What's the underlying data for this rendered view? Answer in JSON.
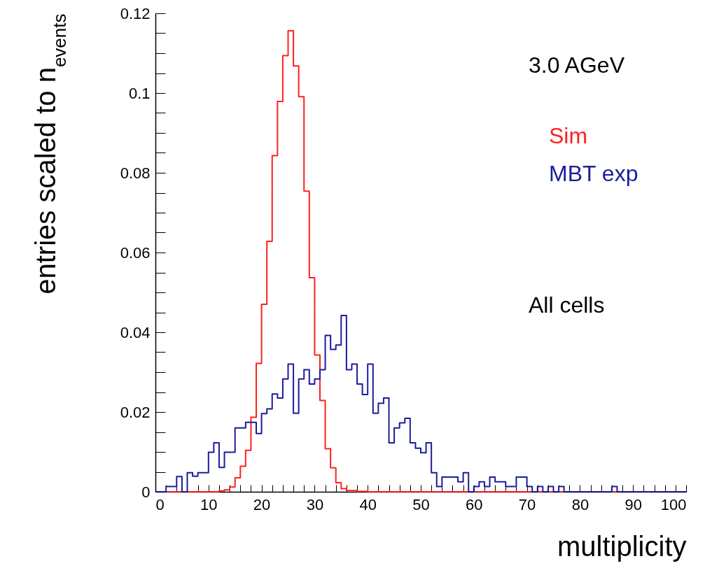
{
  "chart_data": {
    "type": "histogram",
    "xlabel": "multiplicity",
    "ylabel": "entries scaled to n$_{events}$",
    "bins": [
      0,
      1,
      2,
      3,
      4,
      5,
      6,
      7,
      8,
      9,
      10,
      11,
      12,
      13,
      14,
      15,
      16,
      17,
      18,
      19,
      20,
      21,
      22,
      23,
      24,
      25,
      26,
      27,
      28,
      29,
      30,
      31,
      32,
      33,
      34,
      35,
      36,
      37,
      38,
      39,
      40,
      41,
      42,
      43,
      44,
      45,
      46,
      47,
      48,
      49,
      50,
      51,
      52,
      53,
      54,
      55,
      56,
      57,
      58,
      59,
      60,
      61,
      62,
      63,
      64,
      65,
      66,
      67,
      68,
      69,
      70,
      71,
      72,
      73,
      74,
      75,
      76,
      77,
      78,
      79,
      80,
      81,
      82,
      83,
      84,
      85,
      86,
      87,
      88,
      89,
      90,
      91,
      92,
      93,
      94,
      95,
      96,
      97,
      98,
      99,
      100
    ],
    "series": [
      {
        "name": "Sim",
        "color": "#ff2020",
        "values": [
          0,
          0,
          0,
          0,
          0,
          0,
          0,
          0,
          0,
          0,
          0,
          0,
          0.0002,
          0.0005,
          0.0012,
          0.0035,
          0.0064,
          0.0104,
          0.0187,
          0.0322,
          0.047,
          0.0628,
          0.0843,
          0.0979,
          0.1094,
          0.1156,
          0.1068,
          0.0991,
          0.0754,
          0.0537,
          0.0343,
          0.0229,
          0.0108,
          0.006,
          0.0023,
          0.0008,
          0.0003,
          0.0003,
          0.0001,
          0.0001,
          0,
          0,
          0,
          0,
          0,
          0,
          0,
          0,
          0,
          0,
          0,
          0,
          0,
          0,
          0,
          0,
          0,
          0,
          0,
          0,
          0,
          0,
          0,
          0,
          0,
          0,
          0,
          0,
          0,
          0,
          0,
          0,
          0,
          0,
          0,
          0,
          0,
          0,
          0,
          0,
          0,
          0,
          0,
          0,
          0,
          0,
          0,
          0,
          0,
          0,
          0,
          0,
          0,
          0,
          0,
          0,
          0,
          0,
          0,
          0
        ]
      },
      {
        "name": "MBT exp",
        "color": "#1c1c9c",
        "values": [
          0,
          0,
          0.0013,
          0.0013,
          0.0038,
          0,
          0.0048,
          0.0039,
          0.0048,
          0.0048,
          0.0099,
          0.0123,
          0.0061,
          0.0099,
          0.0099,
          0.016,
          0.016,
          0.0174,
          0.0174,
          0.0146,
          0.0196,
          0.0208,
          0.0245,
          0.0235,
          0.0283,
          0.032,
          0.0197,
          0.0283,
          0.0306,
          0.027,
          0.0283,
          0.0306,
          0.0392,
          0.0357,
          0.0368,
          0.0442,
          0.0306,
          0.032,
          0.027,
          0.0244,
          0.032,
          0.0197,
          0.0222,
          0.0235,
          0.0123,
          0.016,
          0.0173,
          0.0184,
          0.0123,
          0.0109,
          0.0098,
          0.0123,
          0.0048,
          0.0013,
          0.0037,
          0.0037,
          0.0037,
          0.0025,
          0.0048,
          0,
          0.0013,
          0.0025,
          0.0013,
          0.0037,
          0.0025,
          0.0025,
          0.0013,
          0.0013,
          0.0037,
          0.0037,
          0.0013,
          0,
          0.0013,
          0,
          0.0013,
          0,
          0.0013,
          0,
          0,
          0,
          0,
          0,
          0,
          0,
          0,
          0,
          0.0013,
          0,
          0,
          0,
          0,
          0,
          0,
          0,
          0,
          0,
          0,
          0,
          0,
          0
        ]
      }
    ],
    "xlim": [
      0,
      100
    ],
    "xticks": [
      0,
      {
        "value": 2,
        "label": null
      },
      {
        "value": 4,
        "label": null
      },
      {
        "value": 6,
        "label": null
      },
      {
        "value": 8,
        "label": null
      },
      10,
      {
        "value": 12,
        "label": null
      },
      {
        "value": 14,
        "label": null
      },
      {
        "value": 16,
        "label": null
      },
      {
        "value": 18,
        "label": null
      },
      20,
      {
        "value": 22,
        "label": null
      },
      {
        "value": 24,
        "label": null
      },
      {
        "value": 26,
        "label": null
      },
      {
        "value": 28,
        "label": null
      },
      30,
      {
        "value": 32,
        "label": null
      },
      {
        "value": 34,
        "label": null
      },
      {
        "value": 36,
        "label": null
      },
      {
        "value": 38,
        "label": null
      },
      40,
      {
        "value": 42,
        "label": null
      },
      {
        "value": 44,
        "label": null
      },
      {
        "value": 46,
        "label": null
      },
      {
        "value": 48,
        "label": null
      },
      50,
      {
        "value": 52,
        "label": null
      },
      {
        "value": 54,
        "label": null
      },
      {
        "value": 56,
        "label": null
      },
      {
        "value": 58,
        "label": null
      },
      60,
      {
        "value": 62,
        "label": null
      },
      {
        "value": 64,
        "label": null
      },
      {
        "value": 66,
        "label": null
      },
      {
        "value": 68,
        "label": null
      },
      70,
      {
        "value": 72,
        "label": null
      },
      {
        "value": 74,
        "label": null
      },
      {
        "value": 76,
        "label": null
      },
      {
        "value": 78,
        "label": null
      },
      80,
      {
        "value": 82,
        "label": null
      },
      {
        "value": 84,
        "label": null
      },
      {
        "value": 86,
        "label": null
      },
      {
        "value": 88,
        "label": null
      },
      90,
      {
        "value": 92,
        "label": null
      },
      {
        "value": 94,
        "label": null
      },
      {
        "value": 96,
        "label": null
      },
      {
        "value": 98,
        "label": null
      },
      100
    ],
    "ylim": [
      0,
      0.12
    ],
    "yticks": [
      0,
      {
        "value": 0.005,
        "label": null
      },
      {
        "value": 0.01,
        "label": null
      },
      {
        "value": 0.015,
        "label": null
      },
      0.02,
      {
        "value": 0.025,
        "label": null
      },
      {
        "value": 0.03,
        "label": null
      },
      {
        "value": 0.035,
        "label": null
      },
      0.04,
      {
        "value": 0.045,
        "label": null
      },
      {
        "value": 0.05,
        "label": null
      },
      {
        "value": 0.055,
        "label": null
      },
      0.06,
      {
        "value": 0.065,
        "label": null
      },
      {
        "value": 0.07,
        "label": null
      },
      {
        "value": 0.075,
        "label": null
      },
      0.08,
      {
        "value": 0.085,
        "label": null
      },
      {
        "value": 0.09,
        "label": null
      },
      {
        "value": 0.095,
        "label": null
      },
      0.1,
      {
        "value": 0.105,
        "label": null
      },
      {
        "value": 0.11,
        "label": null
      },
      {
        "value": 0.115,
        "label": null
      },
      0.12
    ],
    "legend": "right",
    "annotations": [
      "3.0 AGeV",
      "All cells"
    ]
  }
}
